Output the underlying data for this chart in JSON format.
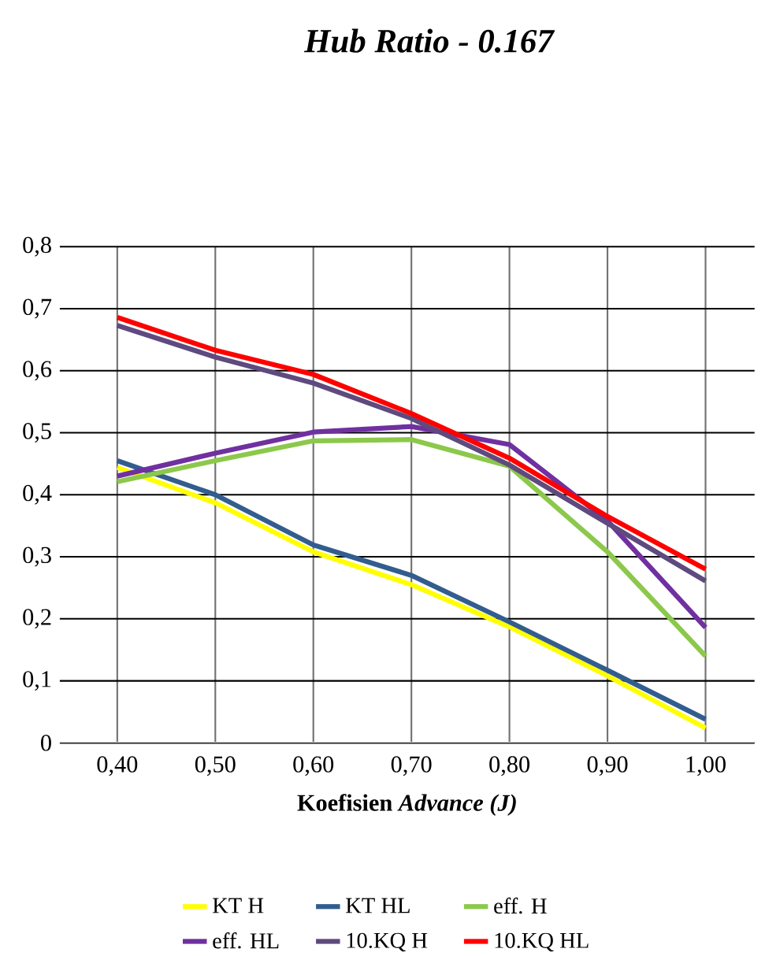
{
  "chart_data": {
    "type": "line",
    "title": "Hub Ratio - 0.167",
    "xlabel": "Koefisien *Advance (J)*",
    "categories": [
      "0,40",
      "0,50",
      "0,60",
      "0,70",
      "0,80",
      "0,90",
      "1,00"
    ],
    "ylim": [
      0,
      0.8
    ],
    "yticks": [
      0,
      {
        "value": 0.1,
        "label": "0,1"
      },
      {
        "value": 0.2,
        "label": "0,2"
      },
      {
        "value": 0.3,
        "label": "0,3"
      },
      {
        "value": 0.4,
        "label": "0,4"
      },
      {
        "value": 0.5,
        "label": "0,5"
      },
      {
        "value": 0.6,
        "label": "0,6"
      },
      {
        "value": 0.7,
        "label": "0,7"
      },
      {
        "value": 0.8,
        "label": "0,8"
      }
    ],
    "grid": true,
    "legend": "bottom",
    "marker": "none",
    "line_style": "solid",
    "series": [
      {
        "name": "KT H",
        "color": "#ffff00",
        "values": [
          0.444,
          0.387,
          0.308,
          0.255,
          0.187,
          0.108,
          0.024
        ]
      },
      {
        "name": "KT HL",
        "color": "#325d8e",
        "values": [
          0.455,
          0.4,
          0.319,
          0.27,
          0.195,
          0.117,
          0.038
        ]
      },
      {
        "name": "eff. H",
        "color": "#8cc84b",
        "values": [
          0.421,
          0.455,
          0.487,
          0.489,
          0.446,
          0.308,
          0.14
        ]
      },
      {
        "name": "eff. HL",
        "color": "#7030a0",
        "values": [
          0.43,
          0.467,
          0.501,
          0.51,
          0.481,
          0.358,
          0.186
        ]
      },
      {
        "name": "10.KQ H",
        "color": "#5e4a7e",
        "values": [
          0.673,
          0.622,
          0.58,
          0.523,
          0.448,
          0.354,
          0.261
        ]
      },
      {
        "name": "10.KQ HL",
        "color": "#ff0000",
        "values": [
          0.686,
          0.633,
          0.594,
          0.531,
          0.459,
          0.365,
          0.28
        ]
      }
    ]
  }
}
